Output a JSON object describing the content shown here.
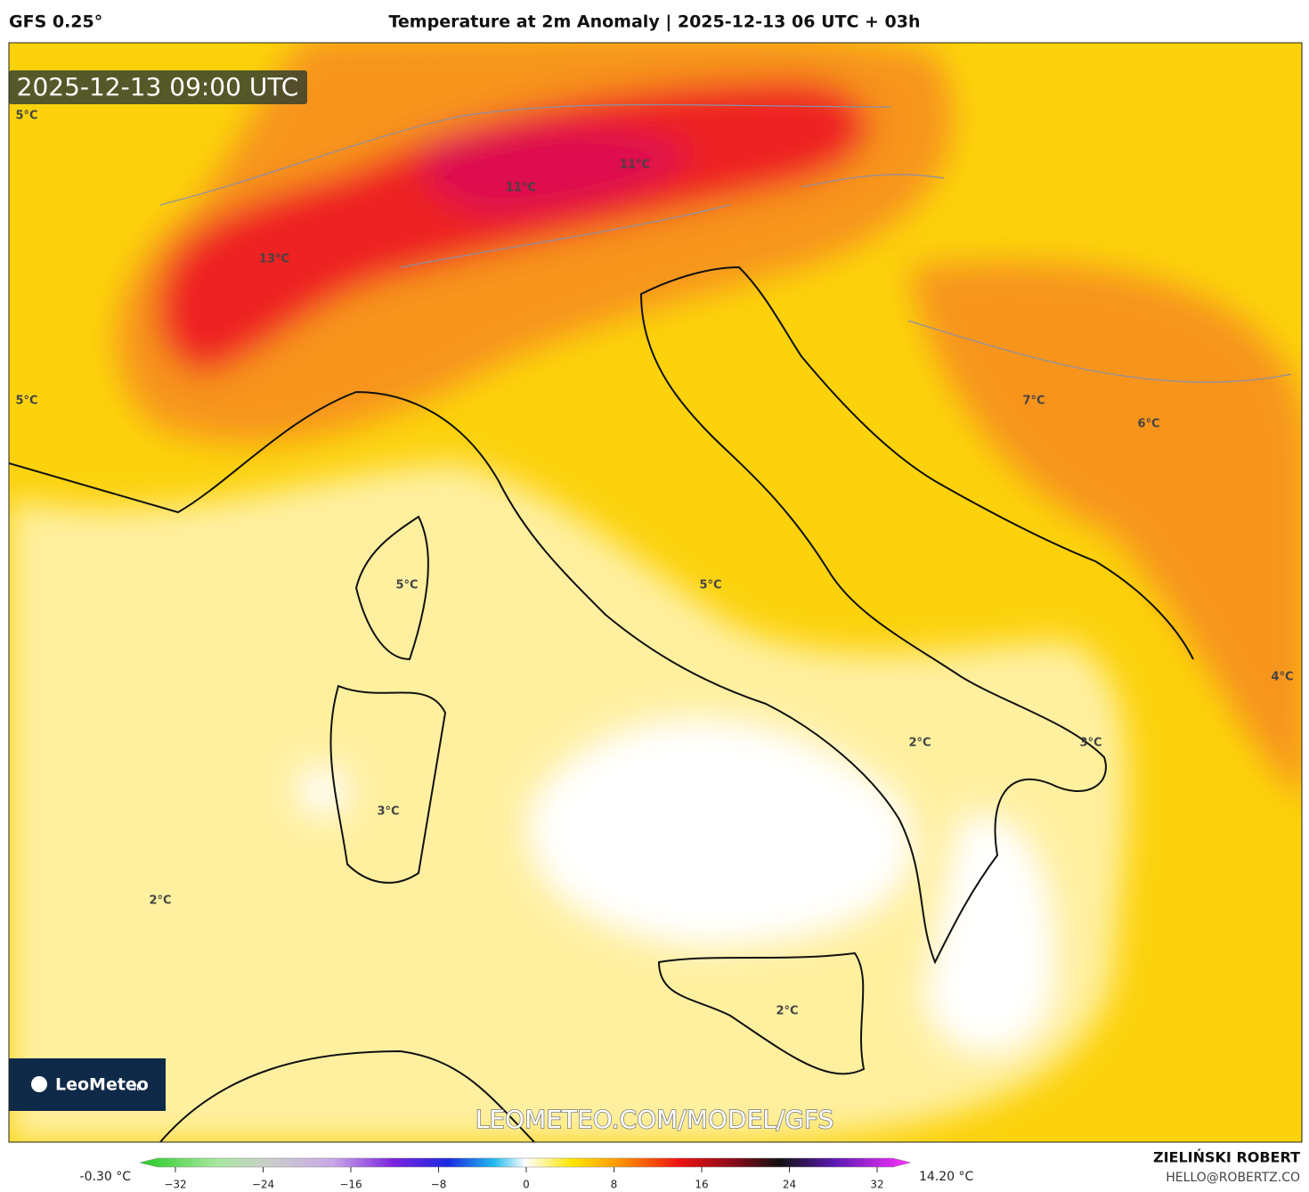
{
  "header": {
    "model": "GFS 0.25°",
    "title": "Temperature at 2m Anomaly | 2025-12-13 06 UTC + 03h"
  },
  "map": {
    "timestamp": "2025-12-13 09:00 UTC",
    "labels": [
      "5°C",
      "5°C",
      "13°C",
      "11°C",
      "11°C",
      "7°C",
      "6°C",
      "5°C",
      "5°C",
      "4°C",
      "2°C",
      "3°C",
      "3°C",
      "2°C",
      "2°C"
    ],
    "logo": "LeoMeteo",
    "logo_suffix": ".it",
    "watermark": "LEOMETEO.COM/MODEL/GFS"
  },
  "colorbar": {
    "min_label": "-0.30 °C",
    "max_label": "14.20 °C",
    "ticks": [
      "−32",
      "−24",
      "−16",
      "−8",
      "0",
      "8",
      "16",
      "24",
      "32"
    ]
  },
  "credits": {
    "author": "ZIELIŃSKI ROBERT",
    "contact": "HELLO@ROBERTZ.CO"
  }
}
